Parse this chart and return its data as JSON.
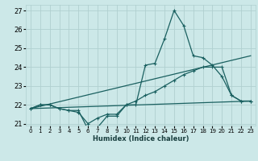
{
  "xlabel": "Humidex (Indice chaleur)",
  "bg_color": "#cce8e8",
  "grid_color": "#b0d0d0",
  "line_color": "#1a6060",
  "xlim": [
    -0.5,
    23.5
  ],
  "ylim": [
    20.9,
    27.3
  ],
  "yticks": [
    21,
    22,
    23,
    24,
    25,
    26,
    27
  ],
  "xticks": [
    0,
    1,
    2,
    3,
    4,
    5,
    6,
    7,
    8,
    9,
    10,
    11,
    12,
    13,
    14,
    15,
    16,
    17,
    18,
    19,
    20,
    21,
    22,
    23
  ],
  "line1_x": [
    0,
    1,
    2,
    3,
    4,
    5,
    6,
    7,
    8,
    9,
    10,
    11,
    12,
    13,
    14,
    15,
    16,
    17,
    18,
    19,
    20,
    21,
    22,
    23
  ],
  "line1_y": [
    21.8,
    22.0,
    22.0,
    21.8,
    21.7,
    21.7,
    20.7,
    20.8,
    21.4,
    21.4,
    22.0,
    22.0,
    24.1,
    24.2,
    25.5,
    27.0,
    26.2,
    24.6,
    24.5,
    24.1,
    23.5,
    22.5,
    22.2,
    22.2
  ],
  "line2_x": [
    0,
    23
  ],
  "line2_y": [
    21.8,
    24.6
  ],
  "line3_x": [
    0,
    23
  ],
  "line3_y": [
    21.8,
    22.2
  ],
  "line4_x": [
    0,
    1,
    2,
    3,
    4,
    5,
    6,
    7,
    8,
    9,
    10,
    11,
    12,
    13,
    14,
    15,
    16,
    17,
    18,
    19,
    20,
    21,
    22,
    23
  ],
  "line4_y": [
    21.8,
    22.0,
    22.0,
    21.8,
    21.7,
    21.6,
    21.0,
    21.3,
    21.5,
    21.5,
    22.0,
    22.2,
    22.5,
    22.7,
    23.0,
    23.3,
    23.6,
    23.8,
    24.0,
    24.0,
    24.0,
    22.5,
    22.2,
    22.2
  ]
}
